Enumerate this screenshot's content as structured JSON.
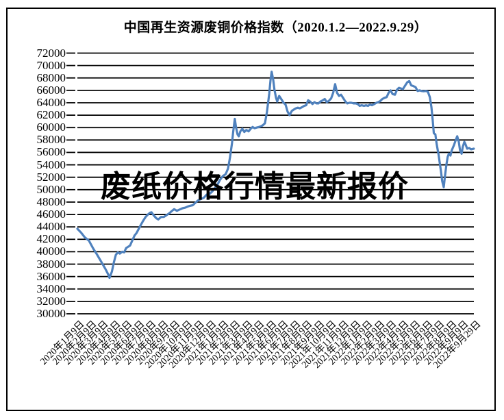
{
  "chart_data": {
    "type": "line",
    "title": "中国再生资源废铜价格指数（2020.1.2—2022.9.29）",
    "watermark": "废纸价格行情最新报价",
    "ylim": [
      30000,
      72000
    ],
    "y_tick_step": 2000,
    "grid": "horizontal",
    "legend_position": "none",
    "line_color": "#4F81BD",
    "grid_color": "#000000",
    "y_ticks": [
      72000,
      70000,
      68000,
      66000,
      64000,
      62000,
      60000,
      58000,
      56000,
      54000,
      52000,
      50000,
      48000,
      46000,
      44000,
      42000,
      40000,
      38000,
      36000,
      34000,
      32000,
      30000
    ],
    "x_tick_labels": [
      "2020年1月9日",
      "2020年2月9日",
      "2020年3月9日",
      "2020年4月9日",
      "2020年5月9日",
      "2020年6月9日",
      "2020年7月9日",
      "2020年8月9日",
      "2020年9月9日",
      "2020年10月9日",
      "2020年11月9日",
      "2020年12月9日",
      "2021年1月9日",
      "2021年2月9日",
      "2021年3月9日",
      "2021年4月9日",
      "2021年5月9日",
      "2021年6月9日",
      "2021年7月9日",
      "2021年8月9日",
      "2021年9月9日",
      "2021年10月9日",
      "2021年11月9日",
      "2021年12月9日",
      "2022年1月9日",
      "2022年2月9日",
      "2022年3月9日",
      "2022年4月9日",
      "2022年5月9日",
      "2022年6月9日",
      "2022年7月9日",
      "2022年8月9日",
      "2022年9月9日",
      "2022年9月29日"
    ],
    "series": [
      {
        "points": [
          [
            0.0,
            43700
          ],
          [
            0.009,
            43100
          ],
          [
            0.019,
            42300
          ],
          [
            0.029,
            41800
          ],
          [
            0.04,
            40500
          ],
          [
            0.05,
            39500
          ],
          [
            0.061,
            38300
          ],
          [
            0.071,
            37200
          ],
          [
            0.078,
            36300
          ],
          [
            0.081,
            35800
          ],
          [
            0.087,
            36800
          ],
          [
            0.092,
            38300
          ],
          [
            0.097,
            39500
          ],
          [
            0.102,
            39900
          ],
          [
            0.107,
            39700
          ],
          [
            0.113,
            40000
          ],
          [
            0.118,
            39900
          ],
          [
            0.123,
            40600
          ],
          [
            0.128,
            40800
          ],
          [
            0.133,
            41000
          ],
          [
            0.139,
            41900
          ],
          [
            0.144,
            42600
          ],
          [
            0.149,
            43000
          ],
          [
            0.154,
            43600
          ],
          [
            0.16,
            44300
          ],
          [
            0.166,
            45000
          ],
          [
            0.172,
            45600
          ],
          [
            0.178,
            46000
          ],
          [
            0.184,
            46300
          ],
          [
            0.187,
            46350
          ],
          [
            0.192,
            45900
          ],
          [
            0.199,
            45400
          ],
          [
            0.204,
            45200
          ],
          [
            0.211,
            45600
          ],
          [
            0.218,
            45600
          ],
          [
            0.225,
            45900
          ],
          [
            0.232,
            46200
          ],
          [
            0.239,
            46600
          ],
          [
            0.244,
            46850
          ],
          [
            0.251,
            46600
          ],
          [
            0.258,
            46800
          ],
          [
            0.265,
            47000
          ],
          [
            0.272,
            47100
          ],
          [
            0.279,
            47300
          ],
          [
            0.284,
            47400
          ],
          [
            0.291,
            47500
          ],
          [
            0.298,
            47900
          ],
          [
            0.305,
            48300
          ],
          [
            0.312,
            48500
          ],
          [
            0.319,
            48700
          ],
          [
            0.326,
            49200
          ],
          [
            0.333,
            49300
          ],
          [
            0.34,
            49700
          ],
          [
            0.347,
            50300
          ],
          [
            0.354,
            50900
          ],
          [
            0.36,
            51600
          ],
          [
            0.367,
            52200
          ],
          [
            0.374,
            52500
          ],
          [
            0.38,
            53400
          ],
          [
            0.385,
            55200
          ],
          [
            0.39,
            57500
          ],
          [
            0.393,
            59300
          ],
          [
            0.397,
            61400
          ],
          [
            0.4,
            60100
          ],
          [
            0.404,
            58900
          ],
          [
            0.407,
            58600
          ],
          [
            0.411,
            59400
          ],
          [
            0.416,
            59800
          ],
          [
            0.421,
            59300
          ],
          [
            0.426,
            59600
          ],
          [
            0.432,
            59400
          ],
          [
            0.437,
            59800
          ],
          [
            0.442,
            60100
          ],
          [
            0.447,
            59900
          ],
          [
            0.452,
            60000
          ],
          [
            0.458,
            60100
          ],
          [
            0.463,
            60200
          ],
          [
            0.468,
            60400
          ],
          [
            0.473,
            60700
          ],
          [
            0.478,
            62500
          ],
          [
            0.484,
            65500
          ],
          [
            0.487,
            67600
          ],
          [
            0.49,
            69000
          ],
          [
            0.494,
            67700
          ],
          [
            0.497,
            66100
          ],
          [
            0.501,
            64800
          ],
          [
            0.504,
            64200
          ],
          [
            0.509,
            65100
          ],
          [
            0.515,
            64500
          ],
          [
            0.52,
            64000
          ],
          [
            0.525,
            63700
          ],
          [
            0.53,
            62600
          ],
          [
            0.535,
            62000
          ],
          [
            0.541,
            62700
          ],
          [
            0.546,
            62900
          ],
          [
            0.551,
            63100
          ],
          [
            0.556,
            63200
          ],
          [
            0.561,
            63100
          ],
          [
            0.567,
            63300
          ],
          [
            0.572,
            63500
          ],
          [
            0.577,
            63600
          ],
          [
            0.582,
            64400
          ],
          [
            0.587,
            64200
          ],
          [
            0.593,
            63800
          ],
          [
            0.598,
            64100
          ],
          [
            0.603,
            63900
          ],
          [
            0.608,
            63900
          ],
          [
            0.613,
            64200
          ],
          [
            0.619,
            64400
          ],
          [
            0.624,
            64600
          ],
          [
            0.629,
            64100
          ],
          [
            0.634,
            64300
          ],
          [
            0.64,
            64700
          ],
          [
            0.645,
            65600
          ],
          [
            0.65,
            67000
          ],
          [
            0.655,
            65600
          ],
          [
            0.66,
            65100
          ],
          [
            0.665,
            65300
          ],
          [
            0.671,
            64700
          ],
          [
            0.676,
            64200
          ],
          [
            0.681,
            63900
          ],
          [
            0.686,
            64000
          ],
          [
            0.691,
            64000
          ],
          [
            0.697,
            63900
          ],
          [
            0.702,
            63900
          ],
          [
            0.707,
            63800
          ],
          [
            0.712,
            63500
          ],
          [
            0.717,
            63600
          ],
          [
            0.723,
            63500
          ],
          [
            0.728,
            63600
          ],
          [
            0.733,
            63500
          ],
          [
            0.738,
            63700
          ],
          [
            0.743,
            63600
          ],
          [
            0.749,
            63800
          ],
          [
            0.754,
            64000
          ],
          [
            0.759,
            64100
          ],
          [
            0.764,
            64300
          ],
          [
            0.769,
            64600
          ],
          [
            0.775,
            64800
          ],
          [
            0.78,
            64900
          ],
          [
            0.785,
            65600
          ],
          [
            0.79,
            66000
          ],
          [
            0.795,
            65400
          ],
          [
            0.801,
            65300
          ],
          [
            0.806,
            66100
          ],
          [
            0.811,
            66400
          ],
          [
            0.816,
            66300
          ],
          [
            0.821,
            66200
          ],
          [
            0.827,
            66800
          ],
          [
            0.832,
            67300
          ],
          [
            0.837,
            67500
          ],
          [
            0.842,
            66800
          ],
          [
            0.847,
            66700
          ],
          [
            0.853,
            66500
          ],
          [
            0.858,
            65900
          ],
          [
            0.863,
            66000
          ],
          [
            0.868,
            65900
          ],
          [
            0.873,
            65850
          ],
          [
            0.879,
            65900
          ],
          [
            0.884,
            65800
          ],
          [
            0.889,
            64900
          ],
          [
            0.893,
            63300
          ],
          [
            0.896,
            61300
          ],
          [
            0.899,
            59100
          ],
          [
            0.903,
            58900
          ],
          [
            0.906,
            57400
          ],
          [
            0.911,
            55600
          ],
          [
            0.917,
            53000
          ],
          [
            0.92,
            51400
          ],
          [
            0.924,
            50400
          ],
          [
            0.927,
            52100
          ],
          [
            0.931,
            54100
          ],
          [
            0.934,
            55300
          ],
          [
            0.937,
            55800
          ],
          [
            0.941,
            55500
          ],
          [
            0.944,
            56300
          ],
          [
            0.95,
            57200
          ],
          [
            0.955,
            58100
          ],
          [
            0.958,
            58600
          ],
          [
            0.962,
            57700
          ],
          [
            0.965,
            56400
          ],
          [
            0.969,
            55800
          ],
          [
            0.972,
            56900
          ],
          [
            0.976,
            57700
          ],
          [
            0.979,
            57300
          ],
          [
            0.983,
            56600
          ],
          [
            0.988,
            56700
          ],
          [
            0.993,
            56500
          ],
          [
            1.0,
            56600
          ]
        ]
      }
    ]
  }
}
